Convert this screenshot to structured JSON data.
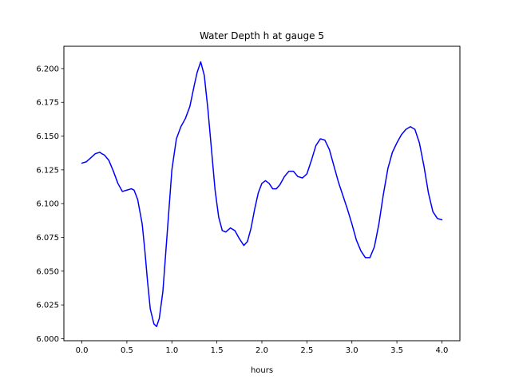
{
  "chart_data": {
    "type": "line",
    "title": "Water Depth h at gauge 5",
    "xlabel": "hours",
    "ylabel": "",
    "xlim": [
      -0.2,
      4.2
    ],
    "ylim": [
      5.9985,
      6.2165
    ],
    "xticks": [
      "0.0",
      "0.5",
      "1.0",
      "1.5",
      "2.0",
      "2.5",
      "3.0",
      "3.5",
      "4.0"
    ],
    "xtick_values": [
      0.0,
      0.5,
      1.0,
      1.5,
      2.0,
      2.5,
      3.0,
      3.5,
      4.0
    ],
    "yticks": [
      "6.000",
      "6.025",
      "6.050",
      "6.075",
      "6.100",
      "6.125",
      "6.150",
      "6.175",
      "6.200"
    ],
    "ytick_values": [
      6.0,
      6.025,
      6.05,
      6.075,
      6.1,
      6.125,
      6.15,
      6.175,
      6.2
    ],
    "grid": false,
    "series": [
      {
        "color": "#0000ff",
        "x": [
          0.0,
          0.05,
          0.1,
          0.15,
          0.2,
          0.22,
          0.25,
          0.3,
          0.35,
          0.4,
          0.45,
          0.5,
          0.55,
          0.58,
          0.62,
          0.67,
          0.7,
          0.73,
          0.76,
          0.8,
          0.83,
          0.86,
          0.9,
          0.95,
          1.0,
          1.05,
          1.1,
          1.15,
          1.2,
          1.25,
          1.28,
          1.32,
          1.36,
          1.4,
          1.44,
          1.48,
          1.52,
          1.56,
          1.6,
          1.65,
          1.7,
          1.75,
          1.8,
          1.84,
          1.88,
          1.92,
          1.96,
          2.0,
          2.04,
          2.08,
          2.12,
          2.16,
          2.2,
          2.25,
          2.3,
          2.35,
          2.4,
          2.45,
          2.5,
          2.55,
          2.6,
          2.65,
          2.7,
          2.75,
          2.8,
          2.85,
          2.9,
          2.95,
          3.0,
          3.05,
          3.1,
          3.15,
          3.2,
          3.25,
          3.3,
          3.35,
          3.4,
          3.45,
          3.5,
          3.55,
          3.6,
          3.65,
          3.7,
          3.75,
          3.8,
          3.85,
          3.9,
          3.95,
          4.0
        ],
        "y": [
          6.13,
          6.131,
          6.134,
          6.137,
          6.138,
          6.137,
          6.136,
          6.132,
          6.124,
          6.115,
          6.109,
          6.11,
          6.111,
          6.11,
          6.103,
          6.085,
          6.065,
          6.042,
          6.022,
          6.011,
          6.009,
          6.015,
          6.035,
          6.08,
          6.125,
          6.148,
          6.157,
          6.163,
          6.172,
          6.188,
          6.197,
          6.205,
          6.195,
          6.17,
          6.14,
          6.11,
          6.09,
          6.08,
          6.079,
          6.082,
          6.08,
          6.074,
          6.069,
          6.072,
          6.082,
          6.096,
          6.108,
          6.115,
          6.117,
          6.115,
          6.111,
          6.111,
          6.114,
          6.12,
          6.124,
          6.124,
          6.12,
          6.119,
          6.122,
          6.132,
          6.143,
          6.148,
          6.147,
          6.14,
          6.128,
          6.116,
          6.106,
          6.096,
          6.085,
          6.073,
          6.065,
          6.06,
          6.06,
          6.068,
          6.085,
          6.107,
          6.126,
          6.138,
          6.145,
          6.151,
          6.155,
          6.157,
          6.155,
          6.145,
          6.128,
          6.108,
          6.094,
          6.089,
          6.088
        ]
      }
    ]
  }
}
